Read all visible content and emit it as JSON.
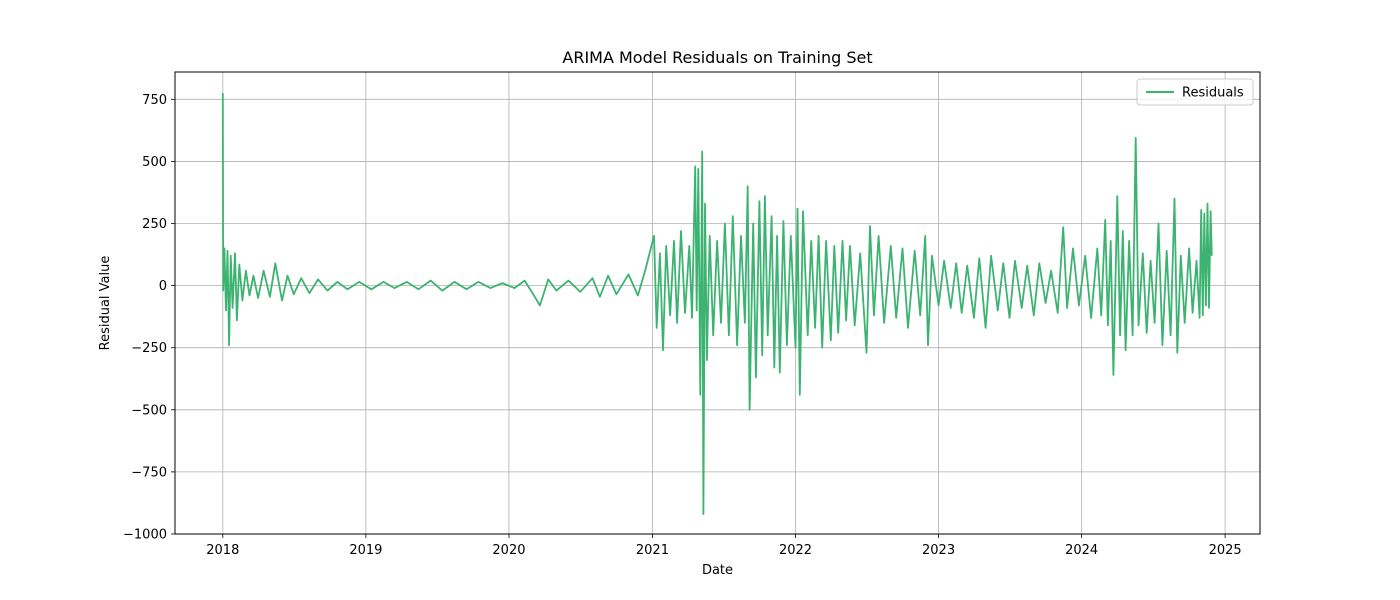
{
  "chart_data": {
    "type": "line",
    "title": "ARIMA Model Residuals on Training Set",
    "xlabel": "Date",
    "ylabel": "Residual Value",
    "xlim": [
      "2017-09-01",
      "2025-03-31"
    ],
    "ylim": [
      -1000,
      860
    ],
    "x_ticks": [
      "2018",
      "2019",
      "2020",
      "2021",
      "2022",
      "2023",
      "2024",
      "2025"
    ],
    "y_ticks": [
      -1000,
      -750,
      -500,
      -250,
      0,
      250,
      500,
      750
    ],
    "y_tick_labels": [
      "−1000",
      "−750",
      "−500",
      "−250",
      "0",
      "250",
      "500",
      "750"
    ],
    "grid": true,
    "legend_position": "top-right",
    "series": [
      {
        "name": "Residuals",
        "color": "#3cb371",
        "points": [
          [
            "2018-01-01",
            775
          ],
          [
            "2018-01-02",
            -20
          ],
          [
            "2018-01-05",
            150
          ],
          [
            "2018-01-09",
            -100
          ],
          [
            "2018-01-13",
            140
          ],
          [
            "2018-01-17",
            -240
          ],
          [
            "2018-01-21",
            120
          ],
          [
            "2018-01-26",
            -90
          ],
          [
            "2018-02-01",
            130
          ],
          [
            "2018-02-06",
            -140
          ],
          [
            "2018-02-12",
            85
          ],
          [
            "2018-02-20",
            -60
          ],
          [
            "2018-03-01",
            60
          ],
          [
            "2018-03-10",
            -40
          ],
          [
            "2018-03-20",
            40
          ],
          [
            "2018-04-01",
            -50
          ],
          [
            "2018-04-15",
            60
          ],
          [
            "2018-05-01",
            -45
          ],
          [
            "2018-05-15",
            90
          ],
          [
            "2018-06-01",
            -60
          ],
          [
            "2018-06-15",
            40
          ],
          [
            "2018-07-01",
            -35
          ],
          [
            "2018-07-20",
            30
          ],
          [
            "2018-08-10",
            -30
          ],
          [
            "2018-09-01",
            25
          ],
          [
            "2018-09-25",
            -20
          ],
          [
            "2018-10-20",
            15
          ],
          [
            "2018-11-15",
            -15
          ],
          [
            "2018-12-15",
            15
          ],
          [
            "2019-01-15",
            -15
          ],
          [
            "2019-02-15",
            15
          ],
          [
            "2019-03-15",
            -10
          ],
          [
            "2019-04-15",
            15
          ],
          [
            "2019-05-15",
            -15
          ],
          [
            "2019-06-15",
            20
          ],
          [
            "2019-07-15",
            -20
          ],
          [
            "2019-08-15",
            15
          ],
          [
            "2019-09-15",
            -15
          ],
          [
            "2019-10-15",
            15
          ],
          [
            "2019-11-15",
            -10
          ],
          [
            "2019-12-15",
            10
          ],
          [
            "2020-01-15",
            -10
          ],
          [
            "2020-02-10",
            20
          ],
          [
            "2020-03-01",
            -30
          ],
          [
            "2020-03-20",
            -80
          ],
          [
            "2020-04-10",
            25
          ],
          [
            "2020-05-01",
            -20
          ],
          [
            "2020-06-01",
            20
          ],
          [
            "2020-07-01",
            -25
          ],
          [
            "2020-08-01",
            30
          ],
          [
            "2020-08-20",
            -45
          ],
          [
            "2020-09-10",
            40
          ],
          [
            "2020-10-01",
            -35
          ],
          [
            "2020-11-01",
            45
          ],
          [
            "2020-11-25",
            -40
          ],
          [
            "2020-12-15",
            70
          ],
          [
            "2021-01-05",
            200
          ],
          [
            "2021-01-12",
            -170
          ],
          [
            "2021-01-20",
            130
          ],
          [
            "2021-01-28",
            -260
          ],
          [
            "2021-02-05",
            160
          ],
          [
            "2021-02-15",
            -120
          ],
          [
            "2021-02-25",
            180
          ],
          [
            "2021-03-05",
            -150
          ],
          [
            "2021-03-15",
            220
          ],
          [
            "2021-03-25",
            -110
          ],
          [
            "2021-04-05",
            160
          ],
          [
            "2021-04-12",
            -130
          ],
          [
            "2021-04-20",
            480
          ],
          [
            "2021-04-24",
            -100
          ],
          [
            "2021-04-28",
            470
          ],
          [
            "2021-05-03",
            -440
          ],
          [
            "2021-05-08",
            540
          ],
          [
            "2021-05-11",
            -920
          ],
          [
            "2021-05-15",
            330
          ],
          [
            "2021-05-20",
            -300
          ],
          [
            "2021-05-27",
            200
          ],
          [
            "2021-06-05",
            -200
          ],
          [
            "2021-06-15",
            180
          ],
          [
            "2021-06-25",
            -150
          ],
          [
            "2021-07-05",
            250
          ],
          [
            "2021-07-15",
            -200
          ],
          [
            "2021-07-25",
            280
          ],
          [
            "2021-08-05",
            -240
          ],
          [
            "2021-08-15",
            200
          ],
          [
            "2021-08-25",
            -150
          ],
          [
            "2021-09-01",
            400
          ],
          [
            "2021-09-06",
            -500
          ],
          [
            "2021-09-15",
            250
          ],
          [
            "2021-09-22",
            -370
          ],
          [
            "2021-10-01",
            340
          ],
          [
            "2021-10-08",
            -280
          ],
          [
            "2021-10-15",
            360
          ],
          [
            "2021-10-22",
            -200
          ],
          [
            "2021-11-01",
            280
          ],
          [
            "2021-11-08",
            -330
          ],
          [
            "2021-11-15",
            200
          ],
          [
            "2021-11-22",
            -350
          ],
          [
            "2021-12-01",
            260
          ],
          [
            "2021-12-10",
            -240
          ],
          [
            "2021-12-20",
            200
          ],
          [
            "2022-01-01",
            -250
          ],
          [
            "2022-01-06",
            310
          ],
          [
            "2022-01-12",
            -440
          ],
          [
            "2022-01-20",
            300
          ],
          [
            "2022-02-01",
            -200
          ],
          [
            "2022-02-10",
            180
          ],
          [
            "2022-02-20",
            -170
          ],
          [
            "2022-03-01",
            200
          ],
          [
            "2022-03-10",
            -250
          ],
          [
            "2022-03-20",
            180
          ],
          [
            "2022-04-01",
            -220
          ],
          [
            "2022-04-10",
            160
          ],
          [
            "2022-04-20",
            -190
          ],
          [
            "2022-05-01",
            180
          ],
          [
            "2022-05-10",
            -140
          ],
          [
            "2022-05-20",
            160
          ],
          [
            "2022-06-01",
            -160
          ],
          [
            "2022-06-15",
            130
          ],
          [
            "2022-07-01",
            -270
          ],
          [
            "2022-07-10",
            240
          ],
          [
            "2022-07-20",
            -120
          ],
          [
            "2022-08-01",
            200
          ],
          [
            "2022-08-15",
            -150
          ],
          [
            "2022-09-01",
            160
          ],
          [
            "2022-09-15",
            -130
          ],
          [
            "2022-10-01",
            150
          ],
          [
            "2022-10-15",
            -170
          ],
          [
            "2022-11-01",
            140
          ],
          [
            "2022-11-15",
            -120
          ],
          [
            "2022-11-28",
            200
          ],
          [
            "2022-12-05",
            -240
          ],
          [
            "2022-12-15",
            120
          ],
          [
            "2023-01-01",
            -80
          ],
          [
            "2023-01-15",
            100
          ],
          [
            "2023-02-01",
            -90
          ],
          [
            "2023-02-15",
            90
          ],
          [
            "2023-03-01",
            -110
          ],
          [
            "2023-03-15",
            80
          ],
          [
            "2023-04-01",
            -130
          ],
          [
            "2023-04-15",
            110
          ],
          [
            "2023-05-01",
            -170
          ],
          [
            "2023-05-15",
            120
          ],
          [
            "2023-06-01",
            -100
          ],
          [
            "2023-06-15",
            90
          ],
          [
            "2023-07-01",
            -130
          ],
          [
            "2023-07-15",
            100
          ],
          [
            "2023-08-01",
            -90
          ],
          [
            "2023-08-15",
            80
          ],
          [
            "2023-09-01",
            -120
          ],
          [
            "2023-09-15",
            90
          ],
          [
            "2023-10-01",
            -70
          ],
          [
            "2023-10-15",
            60
          ],
          [
            "2023-11-01",
            -110
          ],
          [
            "2023-11-15",
            235
          ],
          [
            "2023-11-25",
            -90
          ],
          [
            "2023-12-10",
            150
          ],
          [
            "2023-12-25",
            -80
          ],
          [
            "2024-01-10",
            120
          ],
          [
            "2024-01-25",
            -130
          ],
          [
            "2024-02-10",
            150
          ],
          [
            "2024-02-20",
            -120
          ],
          [
            "2024-03-01",
            265
          ],
          [
            "2024-03-08",
            -160
          ],
          [
            "2024-03-15",
            180
          ],
          [
            "2024-03-22",
            -360
          ],
          [
            "2024-04-01",
            360
          ],
          [
            "2024-04-08",
            -200
          ],
          [
            "2024-04-15",
            220
          ],
          [
            "2024-04-22",
            -260
          ],
          [
            "2024-05-01",
            180
          ],
          [
            "2024-05-10",
            -200
          ],
          [
            "2024-05-18",
            595
          ],
          [
            "2024-05-25",
            -160
          ],
          [
            "2024-06-05",
            130
          ],
          [
            "2024-06-15",
            -190
          ],
          [
            "2024-06-25",
            100
          ],
          [
            "2024-07-05",
            -150
          ],
          [
            "2024-07-15",
            250
          ],
          [
            "2024-07-25",
            -240
          ],
          [
            "2024-08-05",
            140
          ],
          [
            "2024-08-15",
            -200
          ],
          [
            "2024-08-25",
            350
          ],
          [
            "2024-09-01",
            -270
          ],
          [
            "2024-09-10",
            120
          ],
          [
            "2024-09-20",
            -150
          ],
          [
            "2024-10-01",
            150
          ],
          [
            "2024-10-10",
            -110
          ],
          [
            "2024-10-20",
            100
          ],
          [
            "2024-10-28",
            -130
          ],
          [
            "2024-11-01",
            305
          ],
          [
            "2024-11-05",
            -120
          ],
          [
            "2024-11-09",
            290
          ],
          [
            "2024-11-13",
            -80
          ],
          [
            "2024-11-17",
            330
          ],
          [
            "2024-11-21",
            -90
          ],
          [
            "2024-11-25",
            300
          ],
          [
            "2024-11-28",
            120
          ]
        ]
      }
    ]
  }
}
